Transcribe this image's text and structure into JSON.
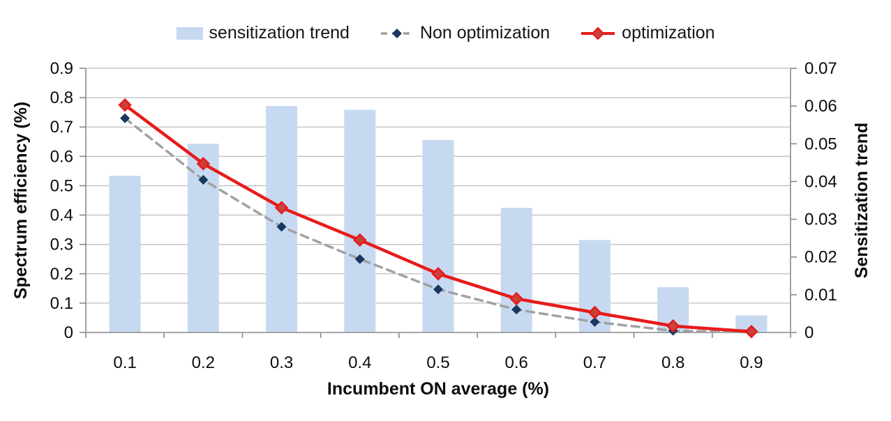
{
  "chart_data": {
    "type": "combo",
    "categories": [
      "0.1",
      "0.2",
      "0.3",
      "0.4",
      "0.5",
      "0.6",
      "0.7",
      "0.8",
      "0.9"
    ],
    "x_axis": {
      "title": "Incumbent ON average (%)"
    },
    "left_axis": {
      "title": "Spectrum efficiency (%)",
      "min": 0,
      "max": 0.9,
      "step": 0.1,
      "tick_labels": [
        "0",
        "0.1",
        "0.2",
        "0.3",
        "0.4",
        "0.5",
        "0.6",
        "0.7",
        "0.8",
        "0.9"
      ]
    },
    "right_axis": {
      "title": "Sensitization trend",
      "min": 0,
      "max": 0.07,
      "step": 0.01,
      "tick_labels": [
        "0",
        "0.01",
        "0.02",
        "0.03",
        "0.04",
        "0.05",
        "0.06",
        "0.07"
      ]
    },
    "grid": "horizontal",
    "legend_position": "top",
    "series": [
      {
        "name": "sensitization trend",
        "type": "bar",
        "axis": "right",
        "color": "#C6D9F0",
        "values": [
          0.0415,
          0.05,
          0.06,
          0.059,
          0.051,
          0.033,
          0.0245,
          0.012,
          0.0045
        ]
      },
      {
        "name": "Non optimization",
        "type": "line",
        "style": "dashed",
        "axis": "left",
        "marker": "diamond",
        "color": "#A1A1A1",
        "marker_color": "#17375E",
        "values": [
          0.73,
          0.52,
          0.36,
          0.25,
          0.147,
          0.078,
          0.036,
          0.006,
          0.001
        ]
      },
      {
        "name": "optimization",
        "type": "line",
        "style": "solid",
        "axis": "left",
        "marker": "diamond",
        "color": "#E81A1A",
        "marker_color": "#C8423A",
        "values": [
          0.775,
          0.575,
          0.425,
          0.315,
          0.2,
          0.115,
          0.068,
          0.022,
          0.003
        ]
      }
    ]
  },
  "colors": {
    "background": "#FFFFFF",
    "gridline": "#BFBFBF",
    "axis_line": "#8A8A8A",
    "text": "#0D0D0D"
  }
}
